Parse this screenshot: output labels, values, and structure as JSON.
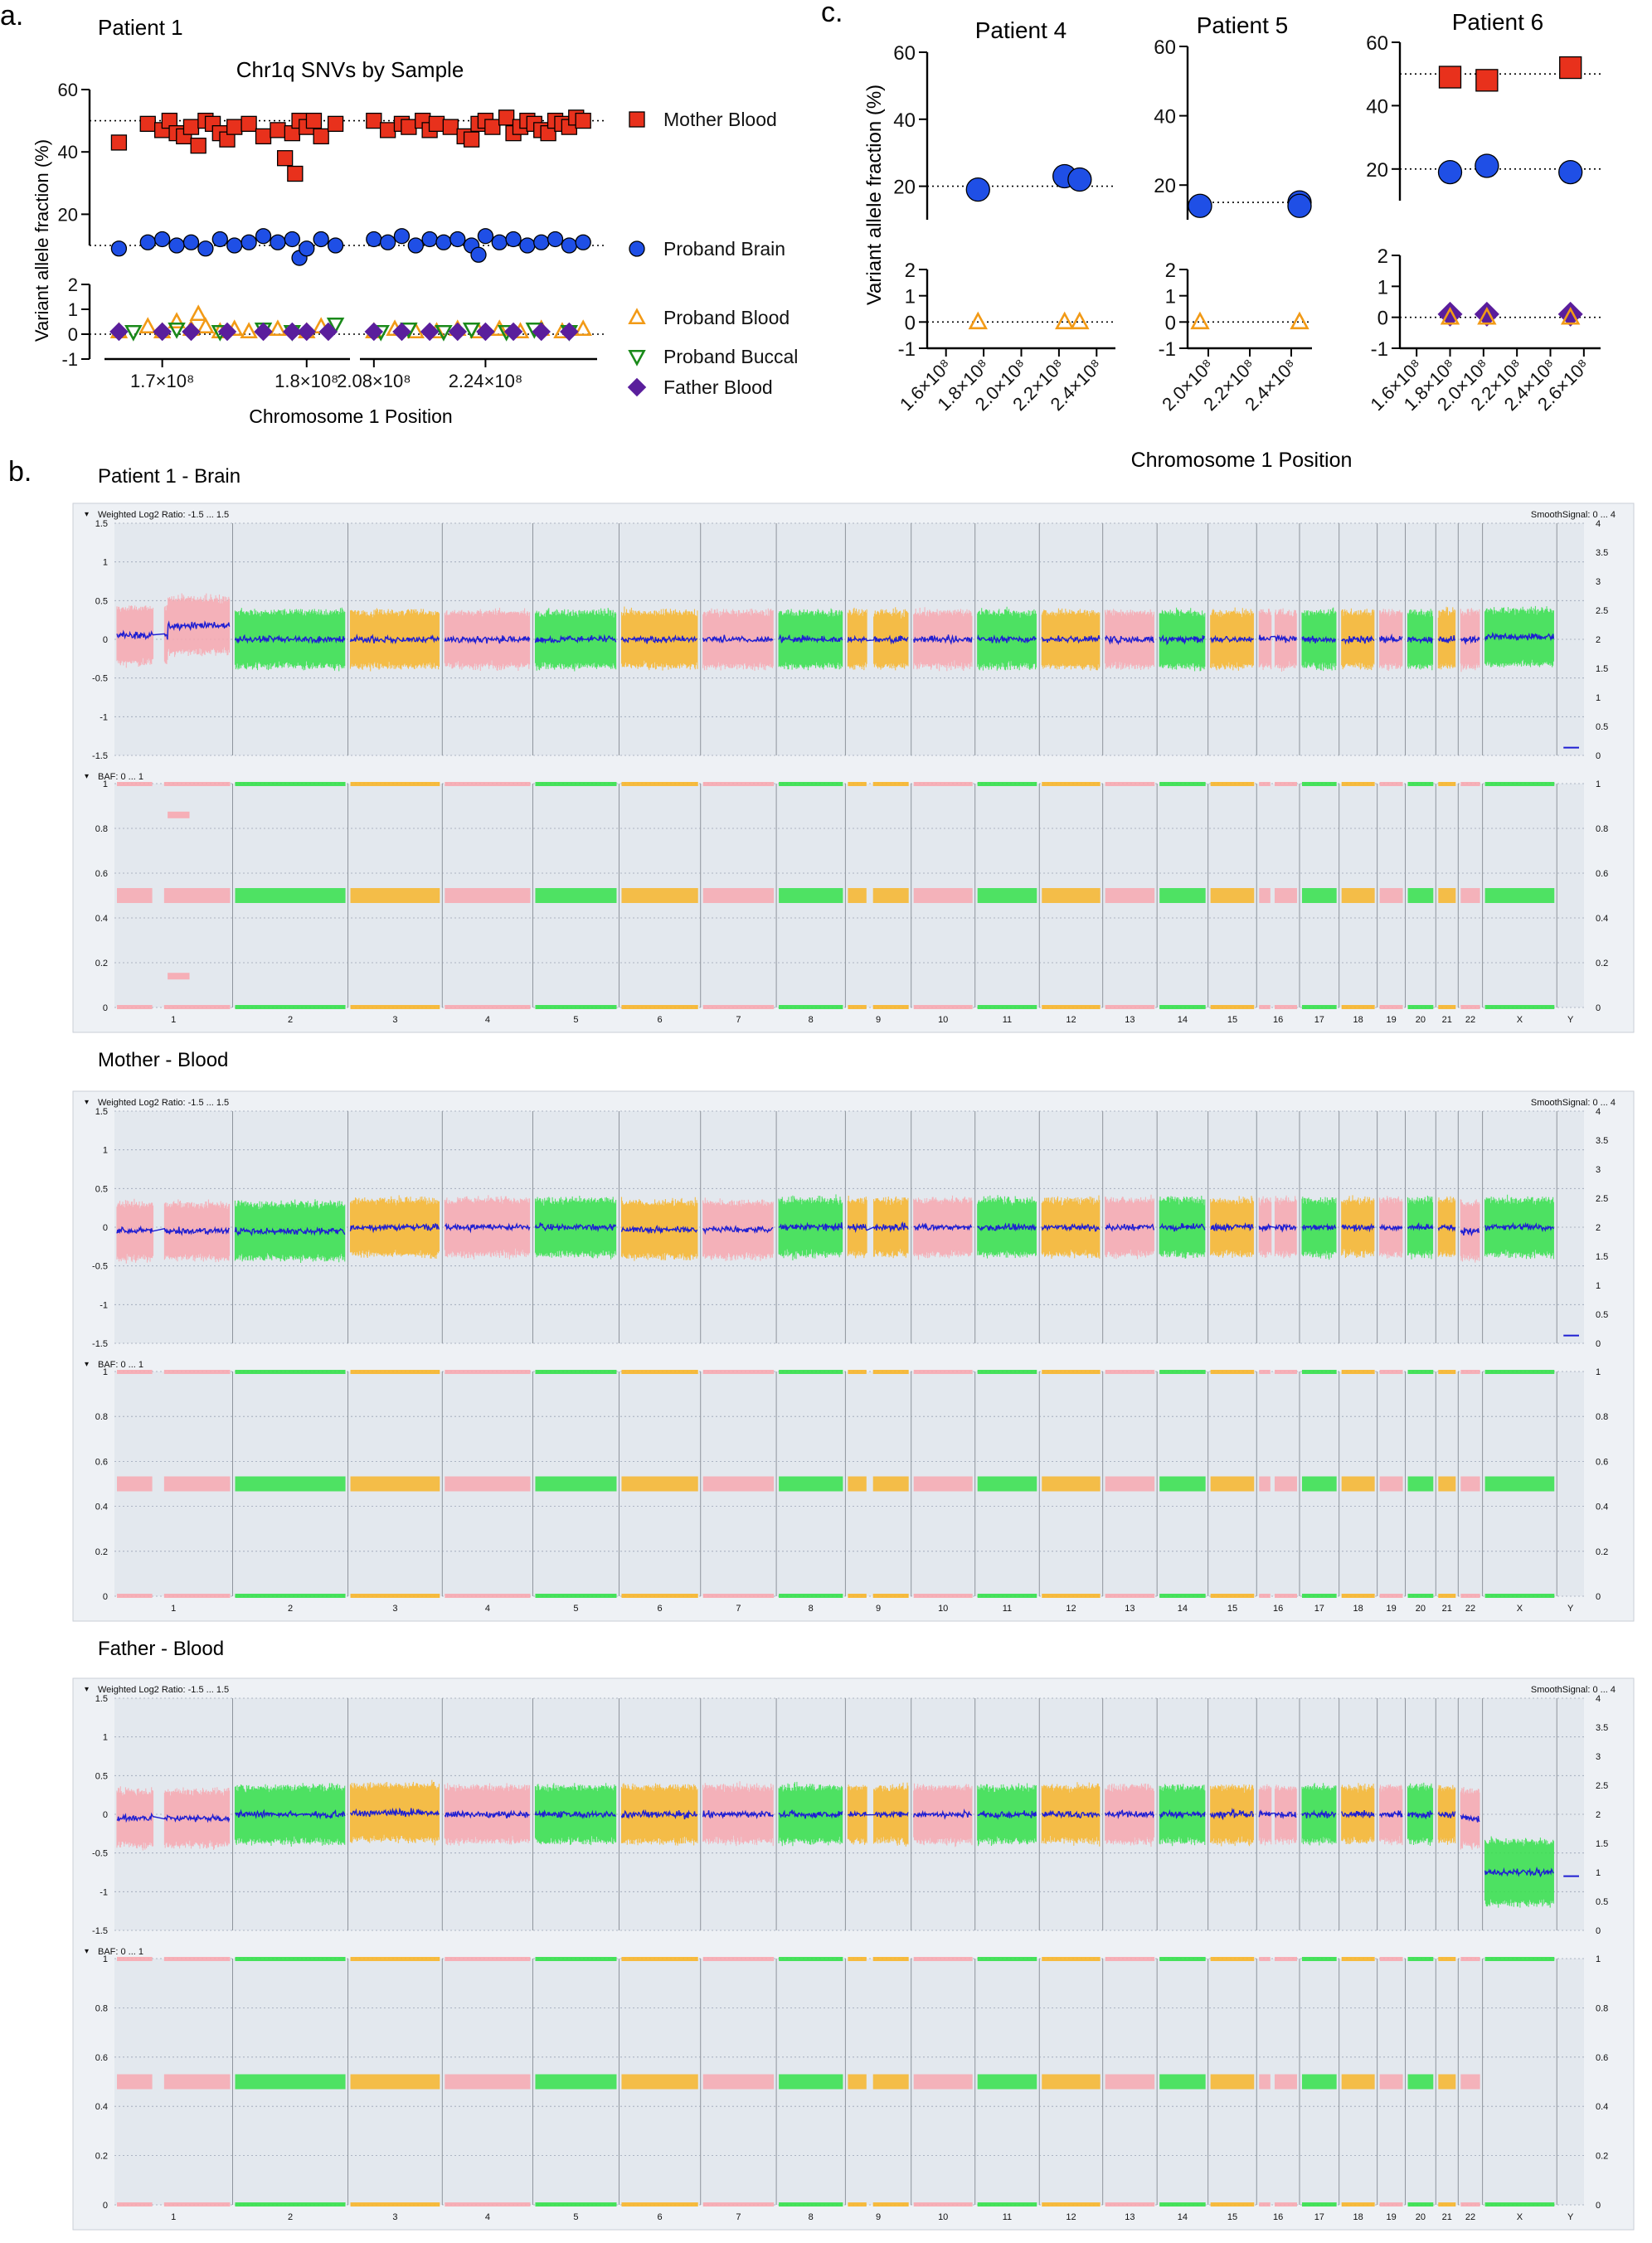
{
  "panel_labels": {
    "a": "a.",
    "b": "b.",
    "c": "c."
  },
  "colors": {
    "mother": "#e8311c",
    "brain": "#1f4fe6",
    "blood": "#f29a16",
    "buccal": "#1a8a1a",
    "father": "#5a1e9c",
    "chr_pink": "#f7a8b0",
    "chr_green": "#34e04a",
    "chr_orange": "#f7b52a",
    "smooth": "#1e1ed2",
    "cnv_bg": "#e3e8ee"
  },
  "chart_data": [
    {
      "id": "patient1",
      "type": "scatter",
      "panel_title": "Patient 1",
      "title": "Chr1q SNVs by Sample",
      "ylabel": "Variant allele fraction (%)",
      "xlabel": "Chromosome 1 Position",
      "x_ticks": [
        "1.7×10⁸",
        "1.8×10⁸",
        "2.08×10⁸",
        "2.24×10⁸"
      ],
      "y_ticks_upper": [
        "60",
        "40",
        "20"
      ],
      "y_ticks_lower": [
        "2",
        "1",
        "0",
        "-1"
      ],
      "legend": [
        "Mother Blood",
        "Proband Brain",
        "Proband Blood",
        "Proband Buccal",
        "Father Blood"
      ],
      "x_segments": [
        [
          166000000.0,
          183000000.0
        ],
        [
          206000000.0,
          240000000.0
        ]
      ],
      "reference_lines": [
        50,
        10,
        0
      ],
      "series": [
        {
          "name": "Mother Blood",
          "marker": "square",
          "color_key": "mother",
          "x": [
            167000000.0,
            169000000.0,
            170000000.0,
            170500000.0,
            171000000.0,
            171500000.0,
            172000000.0,
            172500000.0,
            173000000.0,
            173500000.0,
            174000000.0,
            174500000.0,
            175000000.0,
            176000000.0,
            177000000.0,
            178000000.0,
            178500000.0,
            179000000.0,
            179200000.0,
            179500000.0,
            180000000.0,
            180500000.0,
            181000000.0,
            182000000.0,
            208000000.0,
            210000000.0,
            212000000.0,
            213000000.0,
            215000000.0,
            216000000.0,
            217000000.0,
            219000000.0,
            221000000.0,
            222000000.0,
            223000000.0,
            224000000.0,
            225000000.0,
            227000000.0,
            228000000.0,
            229000000.0,
            230000000.0,
            231000000.0,
            232000000.0,
            233000000.0,
            234000000.0,
            235000000.0,
            236000000.0,
            237000000.0,
            238000000.0
          ],
          "y": [
            43,
            49,
            47,
            50,
            46,
            45,
            48,
            42,
            50,
            49,
            46,
            44,
            48,
            49,
            45,
            47,
            38,
            46,
            33,
            50,
            48,
            50,
            45,
            49,
            50,
            47,
            49,
            48,
            50,
            47,
            49,
            48,
            45,
            44,
            49,
            50,
            48,
            51,
            46,
            48,
            50,
            49,
            47,
            46,
            50,
            49,
            48,
            51,
            50
          ]
        },
        {
          "name": "Proband Brain",
          "marker": "circle",
          "color_key": "brain",
          "x": [
            167000000.0,
            169000000.0,
            170000000.0,
            171000000.0,
            172000000.0,
            173000000.0,
            174000000.0,
            175000000.0,
            176000000.0,
            177000000.0,
            178000000.0,
            179000000.0,
            179500000.0,
            180000000.0,
            181000000.0,
            182000000.0,
            208000000.0,
            210000000.0,
            212000000.0,
            214000000.0,
            216000000.0,
            218000000.0,
            220000000.0,
            222000000.0,
            223000000.0,
            224000000.0,
            226000000.0,
            228000000.0,
            230000000.0,
            232000000.0,
            234000000.0,
            236000000.0,
            238000000.0
          ],
          "y": [
            9,
            11,
            12,
            10,
            11,
            9,
            12,
            10,
            11,
            13,
            11,
            12,
            6,
            9,
            12,
            10,
            12,
            11,
            13,
            10,
            12,
            11,
            12,
            10,
            7,
            13,
            11,
            12,
            10,
            11,
            12,
            10,
            11
          ]
        },
        {
          "name": "Proband Blood",
          "marker": "triangle-up",
          "color_key": "blood",
          "x": [
            167000000.0,
            169000000.0,
            170000000.0,
            171000000.0,
            172000000.0,
            172500000.0,
            173000000.0,
            174000000.0,
            175000000.0,
            176000000.0,
            178000000.0,
            180000000.0,
            181000000.0,
            208000000.0,
            211000000.0,
            214000000.0,
            217000000.0,
            220000000.0,
            223000000.0,
            226000000.0,
            229000000.0,
            232000000.0,
            235000000.0,
            238000000.0
          ],
          "y": [
            0.1,
            0.3,
            0.1,
            0.5,
            0.2,
            0.8,
            0.3,
            0.1,
            0.2,
            0.1,
            0.2,
            0.1,
            0.3,
            0.1,
            0.2,
            0.1,
            0.1,
            0.2,
            0.1,
            0.2,
            0.1,
            0.2,
            0.1,
            0.2
          ]
        },
        {
          "name": "Proband Buccal",
          "marker": "triangle-down",
          "color_key": "buccal",
          "x": [
            168000000.0,
            171000000.0,
            174000000.0,
            177000000.0,
            179000000.0,
            182000000.0,
            209000000.0,
            213000000.0,
            218000000.0,
            222000000.0,
            227000000.0,
            231000000.0,
            236000000.0
          ],
          "y": [
            0.1,
            0.2,
            0.1,
            0.2,
            0.1,
            0.4,
            0.1,
            0.2,
            0.1,
            0.2,
            0.1,
            0.2,
            0.1
          ]
        },
        {
          "name": "Father Blood",
          "marker": "diamond",
          "color_key": "father",
          "x": [
            167000000.0,
            170000000.0,
            172000000.0,
            174500000.0,
            177000000.0,
            179000000.0,
            180000000.0,
            181500000.0,
            208000000.0,
            212000000.0,
            216000000.0,
            220000000.0,
            224000000.0,
            228000000.0,
            232000000.0,
            236000000.0
          ],
          "y": [
            0.1,
            0.1,
            0.1,
            0.1,
            0.1,
            0.1,
            0.1,
            0.1,
            0.1,
            0.1,
            0.1,
            0.1,
            0.1,
            0.1,
            0.1,
            0.1
          ]
        }
      ]
    },
    {
      "id": "patient4",
      "type": "scatter",
      "panel_title": "Patient 4",
      "xlim": [
        150000000.0,
        250000000.0
      ],
      "x_ticks": [
        "1.6×10⁸",
        "1.8×10⁸",
        "2.0×10⁸",
        "2.2×10⁸",
        "2.4×10⁸"
      ],
      "y_ticks_upper": [
        "60",
        "40",
        "20"
      ],
      "y_ticks_lower": [
        "2",
        "1",
        "0",
        "-1"
      ],
      "ylabel": "Variant allele fraction (%)",
      "reference_lines": [
        20,
        0
      ],
      "series": [
        {
          "name": "Proband Brain",
          "marker": "circle",
          "color_key": "brain",
          "x": [
            177000000.0,
            223000000.0,
            231000000.0
          ],
          "y": [
            19,
            23,
            22
          ]
        },
        {
          "name": "Proband Blood",
          "marker": "triangle-up",
          "color_key": "blood",
          "x": [
            177000000.0,
            223000000.0,
            231000000.0
          ],
          "y": [
            0,
            0,
            0
          ]
        }
      ]
    },
    {
      "id": "patient5",
      "type": "scatter",
      "panel_title": "Patient 5",
      "xlim": [
        190000000.0,
        250000000.0
      ],
      "x_ticks": [
        "2.0×10⁸",
        "2.2×10⁸",
        "2.4×10⁸"
      ],
      "y_ticks_upper": [
        "60",
        "40",
        "20"
      ],
      "y_ticks_lower": [
        "2",
        "1",
        "0",
        "-1"
      ],
      "reference_lines": [
        15,
        0
      ],
      "series": [
        {
          "name": "Proband Brain",
          "marker": "circle",
          "color_key": "brain",
          "x": [
            196000000.0,
            244000000.0,
            244000000.0
          ],
          "y": [
            14,
            15,
            14
          ]
        },
        {
          "name": "Proband Blood",
          "marker": "triangle-up",
          "color_key": "blood",
          "x": [
            196000000.0,
            244000000.0
          ],
          "y": [
            0,
            0
          ]
        }
      ]
    },
    {
      "id": "patient6",
      "type": "scatter",
      "panel_title": "Patient 6",
      "xlim": [
        150000000.0,
        270000000.0
      ],
      "x_ticks": [
        "1.6×10⁸",
        "1.8×10⁸",
        "2.0×10⁸",
        "2.2×10⁸",
        "2.4×10⁸",
        "2.6×10⁸"
      ],
      "y_ticks_upper": [
        "60",
        "40",
        "20"
      ],
      "y_ticks_lower": [
        "2",
        "1",
        "0",
        "-1"
      ],
      "reference_lines": [
        50,
        20,
        0
      ],
      "series": [
        {
          "name": "Mother Blood",
          "marker": "square",
          "color_key": "mother",
          "x": [
            180000000.0,
            202000000.0,
            252000000.0
          ],
          "y": [
            49,
            48,
            52
          ]
        },
        {
          "name": "Proband Brain",
          "marker": "circle",
          "color_key": "brain",
          "x": [
            180000000.0,
            202000000.0,
            252000000.0
          ],
          "y": [
            19,
            21,
            19
          ]
        },
        {
          "name": "Father Blood",
          "marker": "diamond",
          "color_key": "father",
          "x": [
            180000000.0,
            202000000.0,
            252000000.0
          ],
          "y": [
            0.1,
            0.1,
            0.1
          ]
        },
        {
          "name": "Proband Blood",
          "marker": "triangle-up",
          "color_key": "blood",
          "x": [
            180000000.0,
            202000000.0,
            252000000.0
          ],
          "y": [
            0,
            0,
            0
          ]
        }
      ]
    },
    {
      "id": "patient1_brain_cnv",
      "type": "line",
      "title": "Patient 1 - Brain",
      "log2_header": "Weighted Log2 Ratio: -1.5 ... 1.5",
      "smooth_header": "SmoothSignal: 0 ... 4",
      "baf_header": "BAF: 0 ... 1",
      "log2_ticks": [
        "1.5",
        "1",
        "0.5",
        "0",
        "-0.5",
        "-1",
        "-1.5"
      ],
      "smooth_ticks": [
        "4",
        "3.5",
        "3",
        "2.5",
        "2",
        "1.5",
        "1",
        "0.5",
        "0"
      ],
      "baf_ticks": [
        "1",
        "0.8",
        "0.6",
        "0.4",
        "0.2",
        "0"
      ],
      "chromosomes": [
        "1",
        "2",
        "3",
        "4",
        "5",
        "6",
        "7",
        "8",
        "9",
        "10",
        "11",
        "12",
        "13",
        "14",
        "15",
        "16",
        "17",
        "18",
        "19",
        "20",
        "21",
        "22",
        "X",
        "Y"
      ],
      "log2_mean": [
        0.05,
        0,
        0,
        0,
        0,
        0,
        0,
        0,
        0,
        0,
        0,
        0,
        0,
        0,
        0,
        0,
        0,
        0,
        0,
        0,
        0,
        0,
        0.03,
        -1.4
      ],
      "baf_state": [
        "mosaic-1q",
        "normal",
        "normal",
        "normal",
        "normal",
        "normal",
        "normal",
        "normal",
        "normal",
        "normal",
        "normal",
        "normal",
        "normal",
        "normal",
        "normal",
        "normal",
        "normal",
        "normal",
        "normal",
        "normal",
        "normal",
        "normal",
        "normal",
        "none"
      ]
    },
    {
      "id": "mother_blood_cnv",
      "type": "line",
      "title": "Mother - Blood",
      "log2_header": "Weighted Log2 Ratio: -1.5 ... 1.5",
      "smooth_header": "SmoothSignal: 0 ... 4",
      "baf_header": "BAF: 0 ... 1",
      "log2_ticks": [
        "1.5",
        "1",
        "0.5",
        "0",
        "-0.5",
        "-1",
        "-1.5"
      ],
      "smooth_ticks": [
        "4",
        "3.5",
        "3",
        "2.5",
        "2",
        "1.5",
        "1",
        "0.5",
        "0"
      ],
      "baf_ticks": [
        "1",
        "0.8",
        "0.6",
        "0.4",
        "0.2",
        "0"
      ],
      "chromosomes": [
        "1",
        "2",
        "3",
        "4",
        "5",
        "6",
        "7",
        "8",
        "9",
        "10",
        "11",
        "12",
        "13",
        "14",
        "15",
        "16",
        "17",
        "18",
        "19",
        "20",
        "21",
        "22",
        "X",
        "Y"
      ],
      "log2_mean": [
        -0.05,
        -0.05,
        0,
        0,
        0,
        -0.03,
        -0.03,
        0,
        0,
        0,
        0,
        0,
        0,
        0,
        0,
        0,
        0,
        0,
        0,
        0,
        0,
        -0.05,
        0,
        -1.4
      ],
      "baf_state": [
        "normal",
        "normal",
        "normal",
        "normal",
        "normal",
        "normal",
        "normal",
        "normal",
        "normal",
        "normal",
        "normal",
        "normal",
        "normal",
        "normal",
        "normal",
        "normal",
        "normal",
        "normal",
        "normal",
        "normal",
        "normal",
        "normal",
        "normal",
        "none"
      ]
    },
    {
      "id": "father_blood_cnv",
      "type": "line",
      "title": "Father - Blood",
      "log2_header": "Weighted Log2 Ratio: -1.5 ... 1.5",
      "smooth_header": "SmoothSignal: 0 ... 4",
      "baf_header": "BAF: 0 ... 1",
      "log2_ticks": [
        "1.5",
        "1",
        "0.5",
        "0",
        "-0.5",
        "-1",
        "-1.5"
      ],
      "smooth_ticks": [
        "4",
        "3.5",
        "3",
        "2.5",
        "2",
        "1.5",
        "1",
        "0.5",
        "0"
      ],
      "baf_ticks": [
        "1",
        "0.8",
        "0.6",
        "0.4",
        "0.2",
        "0"
      ],
      "chromosomes": [
        "1",
        "2",
        "3",
        "4",
        "5",
        "6",
        "7",
        "8",
        "9",
        "10",
        "11",
        "12",
        "13",
        "14",
        "15",
        "16",
        "17",
        "18",
        "19",
        "20",
        "21",
        "22",
        "X",
        "Y"
      ],
      "log2_mean": [
        -0.05,
        0,
        0.02,
        0,
        0,
        0,
        0,
        0,
        0,
        0,
        0,
        0,
        0,
        0,
        0,
        0,
        0,
        0,
        0,
        0,
        0,
        -0.05,
        -0.75,
        -0.8
      ],
      "baf_state": [
        "normal",
        "normal",
        "normal",
        "normal",
        "normal",
        "normal",
        "normal",
        "normal",
        "normal",
        "normal",
        "normal",
        "normal",
        "normal",
        "normal",
        "normal",
        "normal",
        "normal",
        "normal",
        "normal",
        "normal",
        "normal",
        "normal",
        "loh",
        "none"
      ]
    }
  ],
  "shared": {
    "c_xlabel": "Chromosome 1 Position"
  }
}
